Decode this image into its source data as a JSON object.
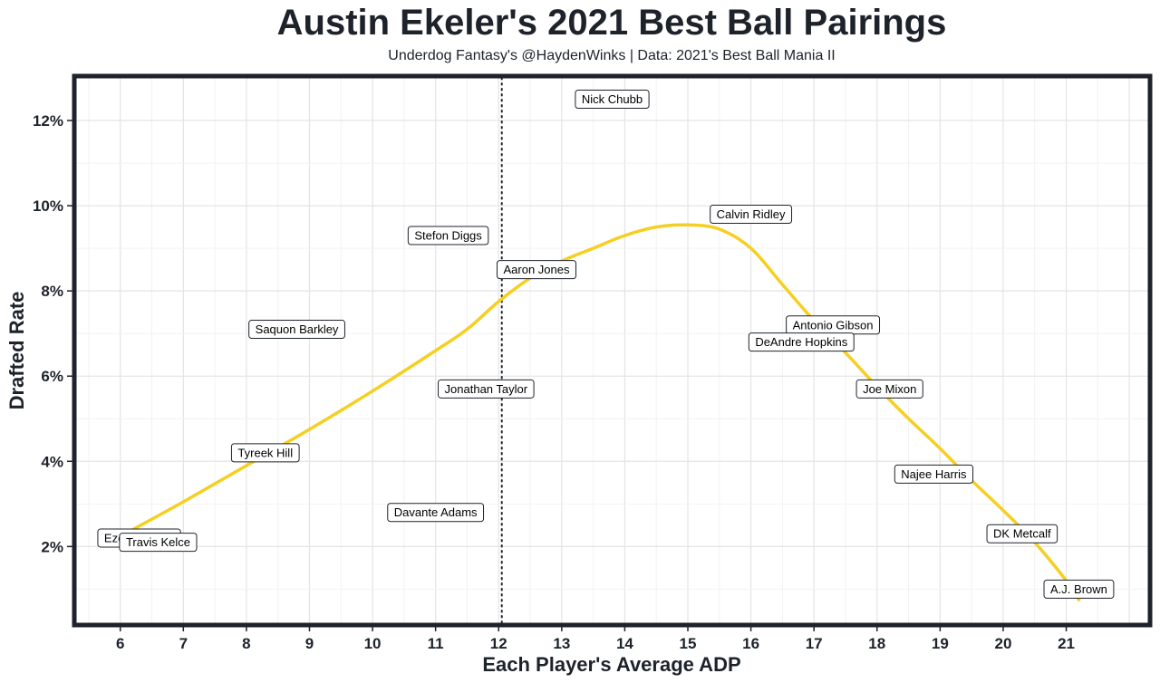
{
  "chart_data": {
    "type": "scatter",
    "title": "Austin Ekeler's 2021 Best Ball Pairings",
    "subtitle": "Underdog Fantasy's @HaydenWinks | Data: 2021's Best Ball Mania II",
    "xlabel": "Each Player's Average ADP",
    "ylabel": "Drafted Rate",
    "xlim": [
      5.3,
      22.3
    ],
    "ylim": [
      0.2,
      13.0
    ],
    "x_ticks": [
      6,
      7,
      8,
      9,
      10,
      11,
      12,
      13,
      14,
      15,
      16,
      17,
      18,
      19,
      20,
      21
    ],
    "y_ticks": [
      2,
      4,
      6,
      8,
      10,
      12
    ],
    "y_tick_labels": [
      "2%",
      "4%",
      "6%",
      "8%",
      "10%",
      "12%"
    ],
    "grid": true,
    "reference_line": {
      "x": 12.05,
      "style": "dotted"
    },
    "points": [
      {
        "label": "Nick Chubb",
        "x": 13.8,
        "y": 12.5
      },
      {
        "label": "Calvin Ridley",
        "x": 16.0,
        "y": 9.8
      },
      {
        "label": "Stefon Diggs",
        "x": 11.2,
        "y": 9.3
      },
      {
        "label": "Aaron Jones",
        "x": 12.6,
        "y": 8.5
      },
      {
        "label": "Antonio Gibson",
        "x": 17.3,
        "y": 7.2
      },
      {
        "label": "Saquon Barkley",
        "x": 8.8,
        "y": 7.1
      },
      {
        "label": "DeAndre Hopkins",
        "x": 16.8,
        "y": 6.8
      },
      {
        "label": "Jonathan Taylor",
        "x": 11.8,
        "y": 5.7
      },
      {
        "label": "Joe Mixon",
        "x": 18.2,
        "y": 5.7
      },
      {
        "label": "Tyreek Hill",
        "x": 8.3,
        "y": 4.2
      },
      {
        "label": "Najee Harris",
        "x": 18.9,
        "y": 3.7
      },
      {
        "label": "Davante Adams",
        "x": 11.0,
        "y": 2.8
      },
      {
        "label": "DK Metcalf",
        "x": 20.3,
        "y": 2.3
      },
      {
        "label": "Ezekiel Elliott",
        "x": 6.3,
        "y": 2.2
      },
      {
        "label": "Travis Kelce",
        "x": 6.6,
        "y": 2.1
      },
      {
        "label": "A.J. Brown",
        "x": 21.2,
        "y": 1.0
      }
    ],
    "trend_line": {
      "x": [
        6.2,
        7,
        8,
        9,
        10,
        11,
        11.5,
        12,
        12.5,
        13,
        13.5,
        14,
        14.5,
        15,
        15.5,
        16,
        16.5,
        17,
        17.5,
        18,
        18.5,
        19,
        19.5,
        20,
        20.5,
        21,
        21.2
      ],
      "y": [
        2.4,
        3.05,
        3.9,
        4.75,
        5.65,
        6.6,
        7.1,
        7.75,
        8.3,
        8.7,
        9.0,
        9.3,
        9.5,
        9.55,
        9.45,
        9.0,
        8.15,
        7.3,
        6.55,
        5.75,
        5.0,
        4.3,
        3.55,
        2.85,
        2.1,
        1.2,
        0.75
      ]
    },
    "colors": {
      "trend": "#f5cf21",
      "frame": "#1d222b",
      "grid_major": "#e4e4e4",
      "grid_minor": "#f2f2f2",
      "label_border": "#1d222b"
    }
  }
}
